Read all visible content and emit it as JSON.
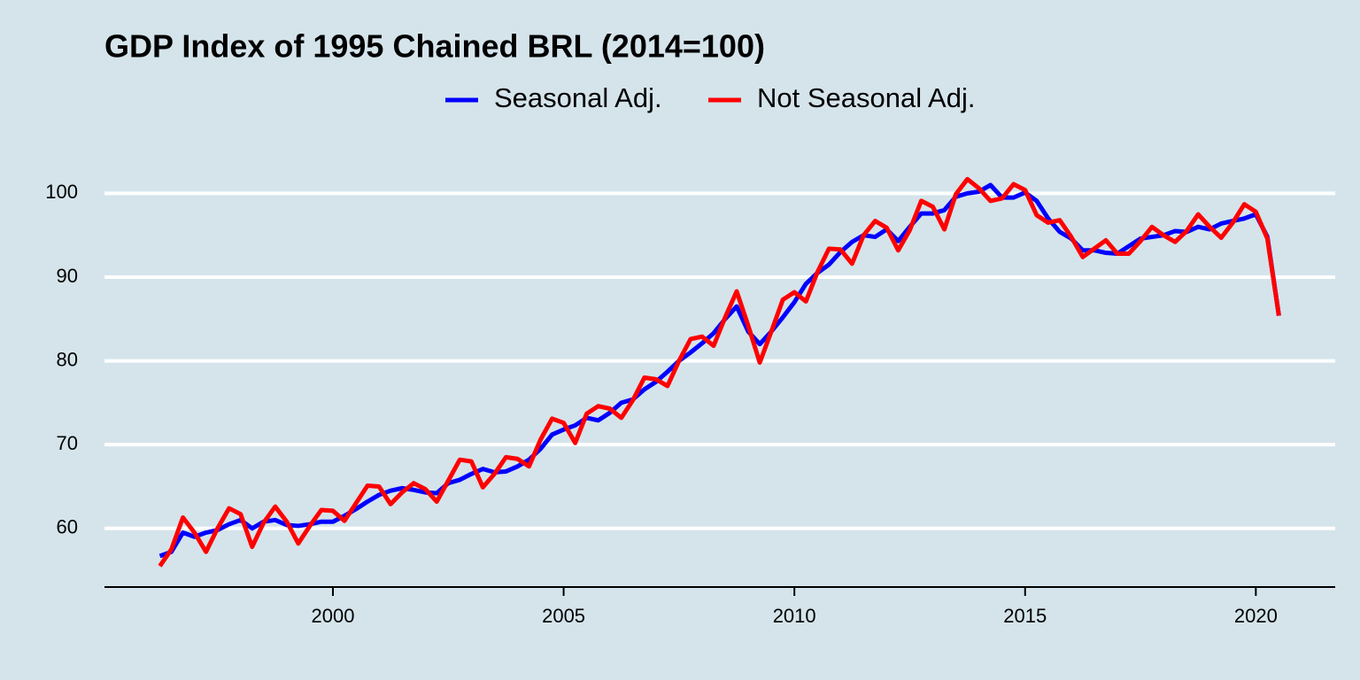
{
  "chart_data": {
    "type": "line",
    "title": "GDP Index of 1995 Chained BRL (2014=100)",
    "x": [
      1996.25,
      1996.5,
      1996.75,
      1997,
      1997.25,
      1997.5,
      1997.75,
      1998,
      1998.25,
      1998.5,
      1998.75,
      1999,
      1999.25,
      1999.5,
      1999.75,
      2000,
      2000.25,
      2000.5,
      2000.75,
      2001,
      2001.25,
      2001.5,
      2001.75,
      2002,
      2002.25,
      2002.5,
      2002.75,
      2003,
      2003.25,
      2003.5,
      2003.75,
      2004,
      2004.25,
      2004.5,
      2004.75,
      2005,
      2005.25,
      2005.5,
      2005.75,
      2006,
      2006.25,
      2006.5,
      2006.75,
      2007,
      2007.25,
      2007.5,
      2007.75,
      2008,
      2008.25,
      2008.5,
      2008.75,
      2009,
      2009.25,
      2009.5,
      2009.75,
      2010,
      2010.25,
      2010.5,
      2010.75,
      2011,
      2011.25,
      2011.5,
      2011.75,
      2012,
      2012.25,
      2012.5,
      2012.75,
      2013,
      2013.25,
      2013.5,
      2013.75,
      2014,
      2014.25,
      2014.5,
      2014.75,
      2015,
      2015.25,
      2015.5,
      2015.75,
      2016,
      2016.25,
      2016.5,
      2016.75,
      2017,
      2017.25,
      2017.5,
      2017.75,
      2018,
      2018.25,
      2018.5,
      2018.75,
      2019,
      2019.25,
      2019.5,
      2019.75,
      2020,
      2020.25,
      2020.5
    ],
    "series": [
      {
        "name": "Seasonal Adj.",
        "color": "#0000ff",
        "values": [
          56.7,
          57.2,
          59.5,
          59,
          59.5,
          59.8,
          60.5,
          61,
          60,
          60.8,
          61,
          60.4,
          60.3,
          60.5,
          60.8,
          60.8,
          61.5,
          62.3,
          63.2,
          64,
          64.5,
          64.8,
          64.6,
          64.3,
          64.2,
          65.4,
          65.8,
          66.5,
          67.1,
          66.7,
          66.8,
          67.4,
          68.2,
          69.5,
          71.2,
          71.8,
          72.3,
          73.2,
          72.9,
          73.8,
          75,
          75.4,
          76.6,
          77.5,
          78.7,
          80,
          81,
          82.1,
          83.3,
          85,
          86.5,
          83.5,
          82,
          83.5,
          85.2,
          87,
          89.2,
          90.5,
          91.5,
          93,
          94.2,
          95,
          94.8,
          95.7,
          94.3,
          96,
          97.6,
          97.6,
          98,
          99.6,
          100,
          100.2,
          101,
          99.5,
          99.5,
          100.1,
          99.1,
          97,
          95.4,
          94.6,
          93.2,
          93.2,
          92.9,
          92.8,
          93.7,
          94.6,
          94.8,
          95,
          95.5,
          95.4,
          96,
          95.7,
          96.4,
          96.7,
          97,
          97.5,
          94.8,
          85.4
        ]
      },
      {
        "name": "Not Seasonal Adj.",
        "color": "#ff0000",
        "values": [
          55.5,
          57.5,
          61.3,
          59.5,
          57.2,
          60,
          62.4,
          61.7,
          57.8,
          60.7,
          62.6,
          60.8,
          58.2,
          60.3,
          62.2,
          62.1,
          60.9,
          63,
          65.1,
          65,
          62.9,
          64.3,
          65.4,
          64.7,
          63.2,
          65.7,
          68.2,
          68,
          64.9,
          66.5,
          68.5,
          68.3,
          67.4,
          70.6,
          73.1,
          72.6,
          70.2,
          73.7,
          74.6,
          74.3,
          73.2,
          75.3,
          78,
          77.8,
          77,
          80,
          82.6,
          82.9,
          81.8,
          85.2,
          88.3,
          84.2,
          79.8,
          83.5,
          87.3,
          88.2,
          87.1,
          90.6,
          93.4,
          93.3,
          91.6,
          95,
          96.7,
          95.9,
          93.2,
          95.6,
          99.1,
          98.4,
          95.7,
          99.9,
          101.7,
          100.6,
          99.1,
          99.4,
          101.1,
          100.4,
          97.4,
          96.5,
          96.8,
          94.8,
          92.4,
          93.4,
          94.4,
          92.8,
          92.8,
          94.3,
          96,
          95,
          94.2,
          95.5,
          97.5,
          96,
          94.7,
          96.5,
          98.7,
          97.8,
          94.6,
          85.4
        ]
      }
    ],
    "xlim": [
      1995.05,
      2021.72
    ],
    "xticks": [
      2000,
      2005,
      2010,
      2015,
      2020
    ],
    "ylim": [
      53,
      103
    ],
    "yticks": [
      60,
      70,
      80,
      90,
      100
    ],
    "grid": true,
    "legend": "top"
  }
}
